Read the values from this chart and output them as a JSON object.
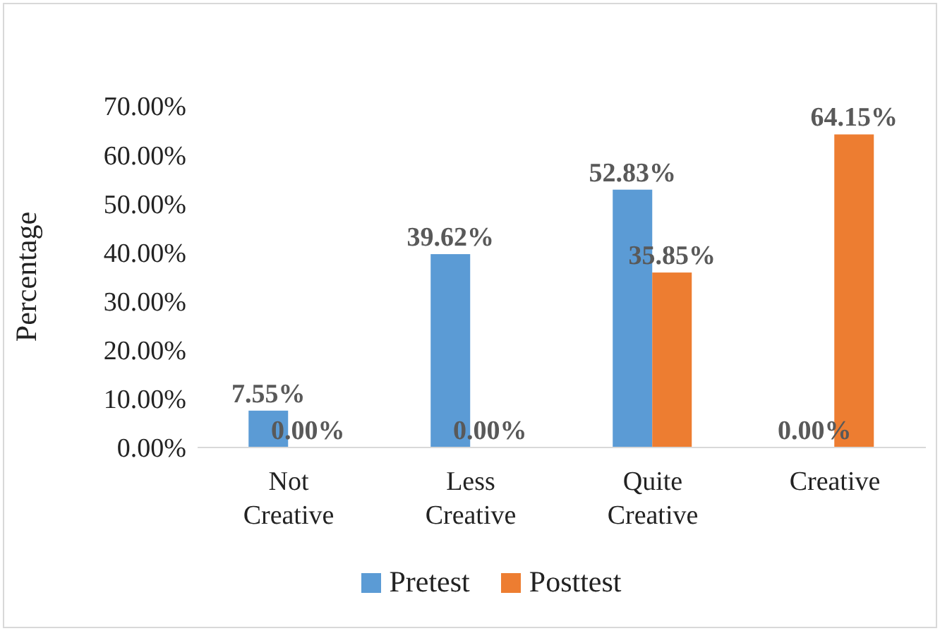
{
  "chart_data": {
    "type": "bar",
    "ylabel": "Percentage",
    "categories": [
      "Not Creative",
      "Less Creative",
      "Quite Creative",
      "Creative"
    ],
    "series": [
      {
        "name": "Pretest",
        "color": "#5b9bd5",
        "values": [
          7.55,
          39.62,
          52.83,
          0.0
        ],
        "value_labels": [
          "7.55%",
          "39.62%",
          "52.83%",
          "0.00%"
        ]
      },
      {
        "name": "Posttest",
        "color": "#ed7d31",
        "values": [
          0.0,
          0.0,
          35.85,
          64.15
        ],
        "value_labels": [
          "0.00%",
          "0.00%",
          "35.85%",
          "64.15%"
        ]
      }
    ],
    "ylim": [
      0,
      70
    ],
    "yticks": [
      {
        "value": 0,
        "label": "0.00%"
      },
      {
        "value": 10,
        "label": "10.00%"
      },
      {
        "value": 20,
        "label": "20.00%"
      },
      {
        "value": 30,
        "label": "30.00%"
      },
      {
        "value": 40,
        "label": "40.00%"
      },
      {
        "value": 50,
        "label": "50.00%"
      },
      {
        "value": 60,
        "label": "60.00%"
      },
      {
        "value": 70,
        "label": "70.00%"
      }
    ],
    "grid": false,
    "legend": "bottom"
  }
}
